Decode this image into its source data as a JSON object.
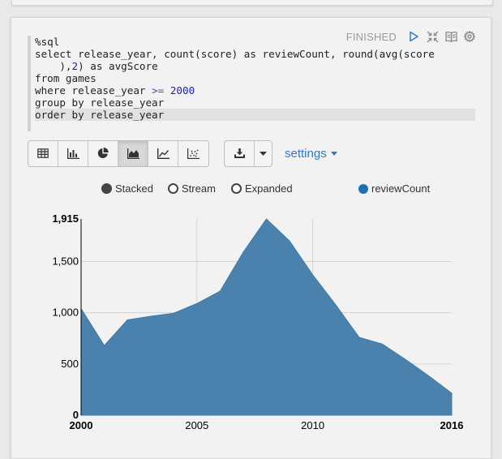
{
  "paragraph": {
    "status": "FINISHED",
    "icons": {
      "run": "play-icon",
      "hide_editor": "collapse-arrows-icon",
      "hide_output": "book-icon",
      "settings": "gear-icon"
    }
  },
  "editor": {
    "lines": [
      [
        {
          "t": "%sql",
          "c": "plain"
        }
      ],
      [
        {
          "t": "select release_year, count(score) as reviewCount, round(avg(score",
          "c": "plain"
        }
      ],
      [
        {
          "t": "    ),",
          "c": "plain"
        },
        {
          "t": "2",
          "c": "num"
        },
        {
          "t": ") as avgScore",
          "c": "plain"
        }
      ],
      [
        {
          "t": "from games",
          "c": "plain"
        }
      ],
      [
        {
          "t": "where release_year ",
          "c": "plain"
        },
        {
          "t": ">=",
          "c": "kw-op"
        },
        {
          "t": " ",
          "c": "plain"
        },
        {
          "t": "2000",
          "c": "num"
        }
      ],
      [
        {
          "t": "group by release_year",
          "c": "plain"
        }
      ],
      [
        {
          "t": "order by release_year",
          "c": "plain"
        }
      ]
    ],
    "active_line": 6
  },
  "toolbar": {
    "view_buttons": [
      "table-icon",
      "bar-chart-icon",
      "pie-chart-icon",
      "area-chart-icon",
      "line-chart-icon",
      "scatter-chart-icon"
    ],
    "active_view": "area-chart-icon",
    "download_icon": "download-icon",
    "dropdown_icon": "caret-down-icon",
    "settings_label": "settings"
  },
  "legend": {
    "modes": [
      "Stacked",
      "Stream",
      "Expanded"
    ],
    "selected_mode": "Stacked",
    "series_label": "reviewCount",
    "series_color": "#1f6fb1"
  },
  "chart_data": {
    "type": "area",
    "title": "",
    "xlabel": "",
    "ylabel": "",
    "x": [
      2000,
      2001,
      2002,
      2003,
      2004,
      2005,
      2006,
      2007,
      2008,
      2009,
      2010,
      2011,
      2012,
      2013,
      2014,
      2015,
      2016
    ],
    "series": [
      {
        "name": "reviewCount",
        "values": [
          1040,
          680,
          930,
          965,
          995,
          1090,
          1210,
          1590,
          1915,
          1700,
          1370,
          1075,
          760,
          695,
          545,
          385,
          215
        ],
        "color": "#4a82ad"
      }
    ],
    "xticks": [
      2000,
      2005,
      2010,
      2016
    ],
    "xtick_labels": [
      "2000",
      "2005",
      "2010",
      "2016"
    ],
    "bold_xticks": [
      "2000",
      "2016"
    ],
    "yticks": [
      0,
      500,
      1000,
      1500,
      1915
    ],
    "ytick_labels": [
      "0",
      "500",
      "1,000",
      "1,500",
      "1,915"
    ],
    "ylim": [
      0,
      1915
    ],
    "xlim": [
      2000,
      2016
    ],
    "grid": true
  }
}
